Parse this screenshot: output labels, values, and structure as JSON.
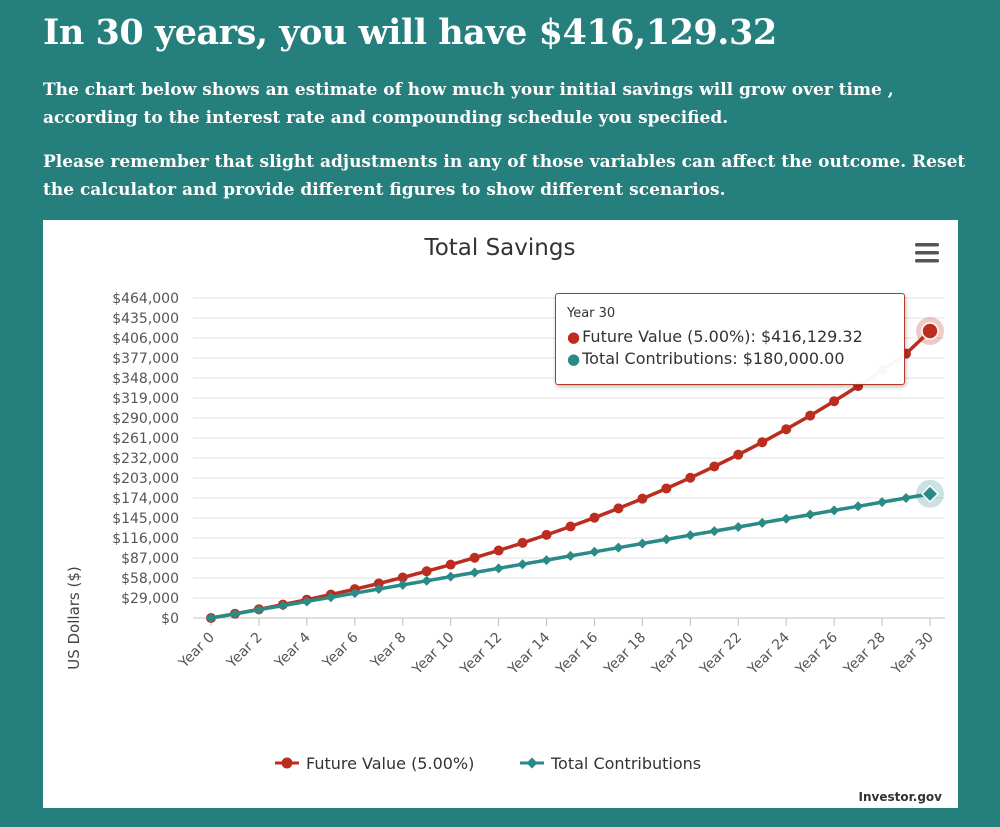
{
  "header": {
    "headline": "In 30 years, you will have $416,129.32",
    "paragraph1": "The chart below shows an estimate of how much your initial savings will grow over time , according to the interest rate and compounding schedule you specified.",
    "paragraph2": "Please remember that slight adjustments in any of those variables can affect the outcome. Reset the calculator and provide different figures to show different scenarios."
  },
  "colors": {
    "background": "#257f7c",
    "future_value": "#bb2e1f",
    "contributions": "#2a8a87"
  },
  "tooltip": {
    "header": "Year 30",
    "future_label": "Future Value (5.00%): ",
    "future_value": "$416,129.32",
    "contrib_label": "Total Contributions: ",
    "contrib_value": "$180,000.00"
  },
  "credit": "Investor.gov",
  "menu_icon": "hamburger-menu-icon",
  "chart_data": {
    "type": "line",
    "title": "Total Savings",
    "ylabel": "US Dollars ($)",
    "ylim": [
      0,
      464000
    ],
    "yticks": [
      0,
      29000,
      58000,
      87000,
      116000,
      145000,
      174000,
      203000,
      232000,
      261000,
      290000,
      319000,
      348000,
      377000,
      406000,
      435000,
      464000
    ],
    "ytick_labels": [
      "$0",
      "$29,000",
      "$58,000",
      "$87,000",
      "$116,000",
      "$145,000",
      "$174,000",
      "$203,000",
      "$232,000",
      "$261,000",
      "$290,000",
      "$319,000",
      "$348,000",
      "$377,000",
      "$406,000",
      "$435,000",
      "$464,000"
    ],
    "categories": [
      "Year 0",
      "Year 1",
      "Year 2",
      "Year 3",
      "Year 4",
      "Year 5",
      "Year 6",
      "Year 7",
      "Year 8",
      "Year 9",
      "Year 10",
      "Year 11",
      "Year 12",
      "Year 13",
      "Year 14",
      "Year 15",
      "Year 16",
      "Year 17",
      "Year 18",
      "Year 19",
      "Year 20",
      "Year 21",
      "Year 22",
      "Year 23",
      "Year 24",
      "Year 25",
      "Year 26",
      "Year 27",
      "Year 28",
      "Year 29",
      "Year 30"
    ],
    "xtick_labels": [
      "Year 0",
      "Year 2",
      "Year 4",
      "Year 6",
      "Year 8",
      "Year 10",
      "Year 12",
      "Year 14",
      "Year 16",
      "Year 18",
      "Year 20",
      "Year 22",
      "Year 24",
      "Year 26",
      "Year 28",
      "Year 30"
    ],
    "grid": true,
    "legend_position": "bottom-center",
    "series": [
      {
        "name": "Future Value (5.00%)",
        "marker": "circle",
        "values": [
          0,
          6150,
          12608,
          19388,
          26508,
          33983,
          41832,
          50074,
          58728,
          67814,
          77355,
          87373,
          97891,
          108936,
          120533,
          132709,
          145495,
          158920,
          173016,
          187817,
          203358,
          219676,
          236810,
          254800,
          273690,
          293525,
          314351,
          336219,
          359180,
          383289,
          416129
        ]
      },
      {
        "name": "Total Contributions",
        "marker": "diamond",
        "values": [
          0,
          6000,
          12000,
          18000,
          24000,
          30000,
          36000,
          42000,
          48000,
          54000,
          60000,
          66000,
          72000,
          78000,
          84000,
          90000,
          96000,
          102000,
          108000,
          114000,
          120000,
          126000,
          132000,
          138000,
          144000,
          150000,
          156000,
          162000,
          168000,
          174000,
          180000
        ]
      }
    ]
  }
}
